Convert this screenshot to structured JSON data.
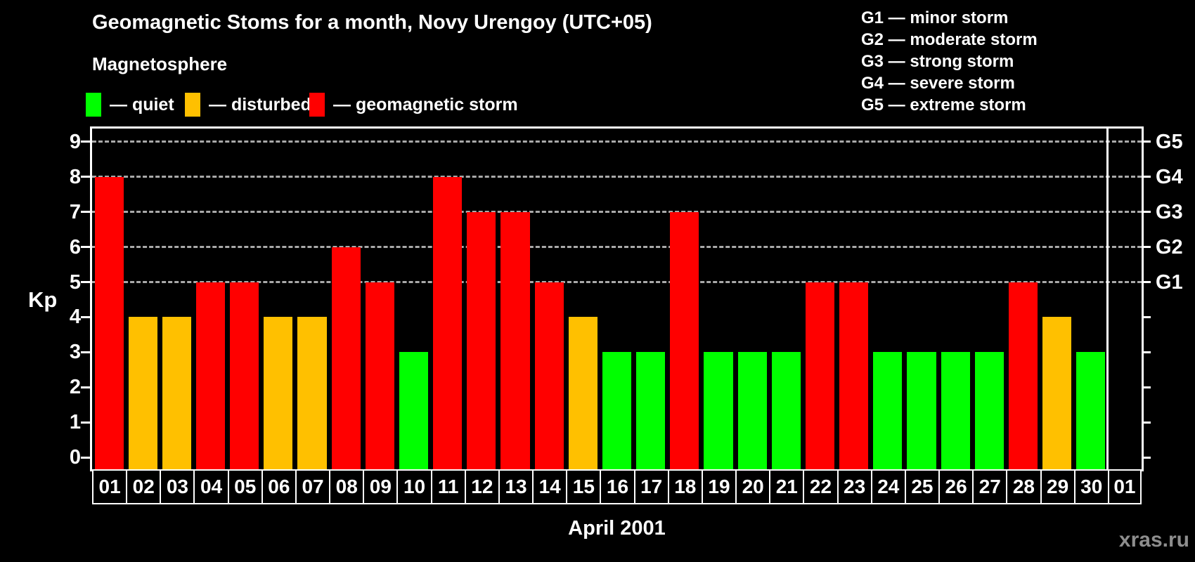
{
  "header": {
    "title": "Geomagnetic Stoms for a month, Novy Urengoy (UTC+05)",
    "subtitle": "Magnetosphere"
  },
  "legend": {
    "items": [
      {
        "key": "quiet",
        "label": "— quiet",
        "color": "#00FF00"
      },
      {
        "key": "disturbed",
        "label": "— disturbed",
        "color": "#FFC000"
      },
      {
        "key": "storm",
        "label": "— geomagnetic storm",
        "color": "#FF0000"
      }
    ]
  },
  "g_legend": [
    "G1 — minor storm",
    "G2 — moderate storm",
    "G3 — strong storm",
    "G4 — severe storm",
    "G5 — extreme storm"
  ],
  "footer": {
    "month_label": "April 2001",
    "watermark": "xras.ru"
  },
  "colors": {
    "background": "#000000",
    "frame": "#FFFFFF",
    "gridline": "#A9A9A9",
    "text": "#FFFFFF",
    "watermark": "#8E8E8E"
  },
  "chart_data": {
    "type": "bar",
    "title": "Geomagnetic Stoms for a month, Novy Urengoy (UTC+05)",
    "xlabel": "April 2001",
    "ylabel": "Kp",
    "ylim": [
      0,
      9.4
    ],
    "grid": "horizontal dashed lines at Kp 5,6,7,8,9 (G1–G5 levels)",
    "legend_position": "top-left (magnetosphere states) and top-right (G scale)",
    "status_colors": {
      "quiet": "#00FF00",
      "disturbed": "#FFC000",
      "storm": "#FF0000"
    },
    "kp_ticks": [
      "0",
      "1",
      "2",
      "3",
      "4",
      "5",
      "6",
      "7",
      "8",
      "9"
    ],
    "g_ticks": [
      {
        "label": "G1",
        "kp": 5
      },
      {
        "label": "G2",
        "kp": 6
      },
      {
        "label": "G3",
        "kp": 7
      },
      {
        "label": "G4",
        "kp": 8
      },
      {
        "label": "G5",
        "kp": 9
      }
    ],
    "categories": [
      "01",
      "02",
      "03",
      "04",
      "05",
      "06",
      "07",
      "08",
      "09",
      "10",
      "11",
      "12",
      "13",
      "14",
      "15",
      "16",
      "17",
      "18",
      "19",
      "20",
      "21",
      "22",
      "23",
      "24",
      "25",
      "26",
      "27",
      "28",
      "29",
      "30",
      "01"
    ],
    "days": [
      {
        "day": "01",
        "kp": 8,
        "status": "storm"
      },
      {
        "day": "02",
        "kp": 4,
        "status": "disturbed"
      },
      {
        "day": "03",
        "kp": 4,
        "status": "disturbed"
      },
      {
        "day": "04",
        "kp": 5,
        "status": "storm"
      },
      {
        "day": "05",
        "kp": 5,
        "status": "storm"
      },
      {
        "day": "06",
        "kp": 4,
        "status": "disturbed"
      },
      {
        "day": "07",
        "kp": 4,
        "status": "disturbed"
      },
      {
        "day": "08",
        "kp": 6,
        "status": "storm"
      },
      {
        "day": "09",
        "kp": 5,
        "status": "storm"
      },
      {
        "day": "10",
        "kp": 3,
        "status": "quiet"
      },
      {
        "day": "11",
        "kp": 8,
        "status": "storm"
      },
      {
        "day": "12",
        "kp": 7,
        "status": "storm"
      },
      {
        "day": "13",
        "kp": 7,
        "status": "storm"
      },
      {
        "day": "14",
        "kp": 5,
        "status": "storm"
      },
      {
        "day": "15",
        "kp": 4,
        "status": "disturbed"
      },
      {
        "day": "16",
        "kp": 3,
        "status": "quiet"
      },
      {
        "day": "17",
        "kp": 3,
        "status": "quiet"
      },
      {
        "day": "18",
        "kp": 7,
        "status": "storm"
      },
      {
        "day": "19",
        "kp": 3,
        "status": "quiet"
      },
      {
        "day": "20",
        "kp": 3,
        "status": "quiet"
      },
      {
        "day": "21",
        "kp": 3,
        "status": "quiet"
      },
      {
        "day": "22",
        "kp": 5,
        "status": "storm"
      },
      {
        "day": "23",
        "kp": 5,
        "status": "storm"
      },
      {
        "day": "24",
        "kp": 3,
        "status": "quiet"
      },
      {
        "day": "25",
        "kp": 3,
        "status": "quiet"
      },
      {
        "day": "26",
        "kp": 3,
        "status": "quiet"
      },
      {
        "day": "27",
        "kp": 3,
        "status": "quiet"
      },
      {
        "day": "28",
        "kp": 5,
        "status": "storm"
      },
      {
        "day": "29",
        "kp": 4,
        "status": "disturbed"
      },
      {
        "day": "30",
        "kp": 3,
        "status": "quiet"
      },
      {
        "day": "01",
        "kp": null,
        "status": null
      }
    ]
  }
}
